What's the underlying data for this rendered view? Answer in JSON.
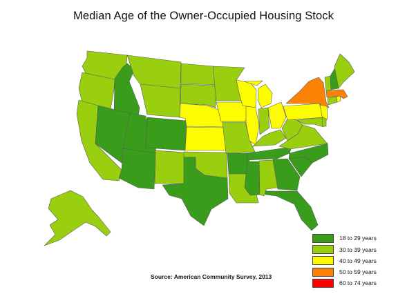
{
  "title": "Median Age of the Owner-Occupied  Housing Stock",
  "source": "Source: American Community Survey, 2013",
  "legend": [
    {
      "label": "18  to 29 years",
      "color": "#3a9c1b"
    },
    {
      "label": "30  to 39 years",
      "color": "#99cf0f"
    },
    {
      "label": "40  to 49 years",
      "color": "#fdfd00"
    },
    {
      "label": "50  to 59 years",
      "color": "#fb8205"
    },
    {
      "label": "60  to 74 years",
      "color": "#fe0000"
    }
  ],
  "states": {
    "WA": "30 to 39",
    "OR": "30 to 39",
    "CA": "30 to 39",
    "ID": "18 to 29",
    "NV": "18 to 29",
    "UT": "18 to 29",
    "AZ": "18 to 29",
    "MT": "30 to 39",
    "WY": "30 to 39",
    "CO": "18 to 29",
    "NM": "30 to 39",
    "ND": "30 to 39",
    "SD": "30 to 39",
    "NE": "40 to 49",
    "KS": "40 to 49",
    "OK": "30 to 39",
    "TX": "18 to 29",
    "MN": "30 to 39",
    "IA": "40 to 49",
    "MO": "30 to 39",
    "AR": "18 to 29",
    "LA": "30 to 39",
    "WI": "40 to 49",
    "IL": "40 to 49",
    "MI": "40 to 49",
    "IN": "30 to 39",
    "OH": "40 to 49",
    "KY": "30 to 39",
    "TN": "18 to 29",
    "MS": "18 to 29",
    "AL": "30 to 39",
    "GA": "18 to 29",
    "FL": "18 to 29",
    "SC": "18 to 29",
    "NC": "18 to 29",
    "VA": "30 to 39",
    "WV": "30 to 39",
    "PA": "40 to 49",
    "NY": "50 to 59",
    "NJ": "40 to 49",
    "DE": "30 to 39",
    "MD": "30 to 39",
    "CT": "30 to 39",
    "RI": "40 to 49",
    "MA": "50 to 59",
    "VT": "30 to 39",
    "NH": "18 to 29",
    "ME": "30 to 39",
    "AK": "30 to 39"
  }
}
